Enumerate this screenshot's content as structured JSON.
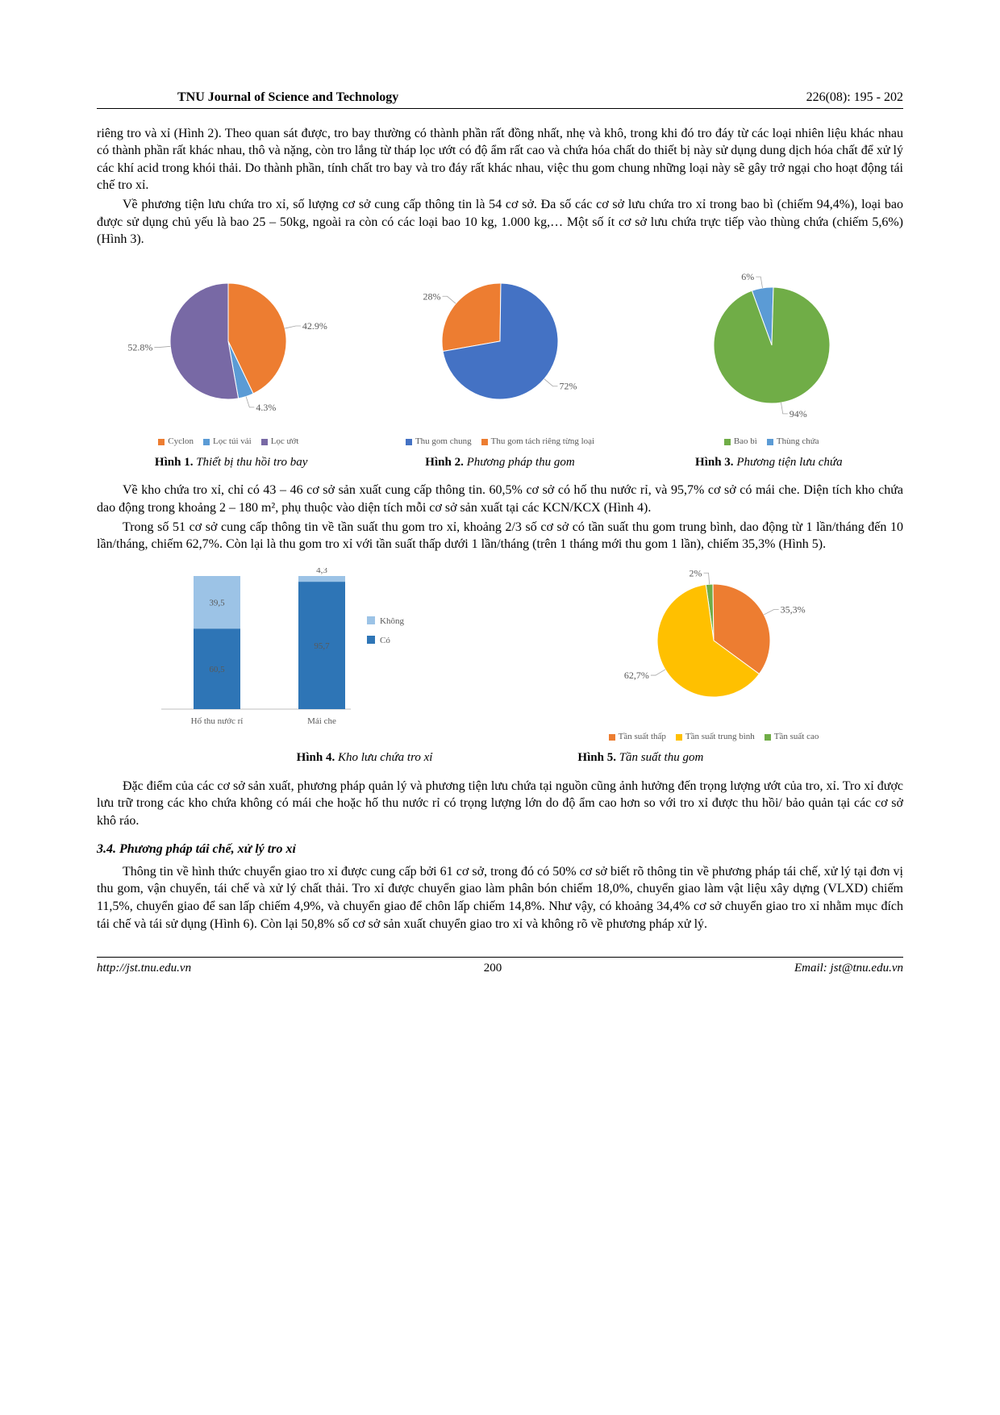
{
  "header": {
    "journal": "TNU Journal of Science and Technology",
    "pages": "226(08): 195 - 202"
  },
  "para1": "riêng tro và xỉ (Hình 2). Theo quan sát được, tro bay thường có thành phần rất đồng nhất, nhẹ và khô, trong khi đó tro đáy từ các loại nhiên liệu khác nhau có thành phần rất khác nhau, thô và nặng, còn tro lắng từ tháp lọc ướt có độ ẩm rất cao và chứa hóa chất do thiết bị này sử dụng dung dịch hóa chất để xử lý các khí acid trong khói thải. Do thành phần, tính chất tro bay và tro đáy rất khác nhau, việc thu gom chung những loại này sẽ gây trở ngại cho hoạt động tái chế tro xỉ.",
  "para2": "Về phương tiện lưu chứa tro xỉ, số lượng cơ sở cung cấp thông tin là 54 cơ sở. Đa số các cơ sở lưu chứa tro xỉ trong bao bì (chiếm 94,4%), loại bao được sử dụng chủ yếu là bao 25 – 50kg, ngoài ra còn có các loại bao 10 kg, 1.000 kg,… Một số ít cơ sở lưu chứa trực tiếp vào thùng chứa (chiếm 5,6%) (Hình 3).",
  "fig1": {
    "type": "pie",
    "slices": [
      {
        "label": "Cyclon",
        "value": 42.9,
        "color": "#ed7d31"
      },
      {
        "label": "Lọc túi vải",
        "value": 4.3,
        "color": "#5b9bd5"
      },
      {
        "label": "Lọc ướt",
        "value": 52.8,
        "color": "#7869a5"
      }
    ],
    "caption_bold": "Hình 1.",
    "caption_ital": " Thiết bị thu hồi tro bay"
  },
  "fig2": {
    "type": "pie",
    "slices": [
      {
        "label": "Thu gom chung",
        "value": 72,
        "color": "#4472c4"
      },
      {
        "label": "Thu gom tách riêng từng loại",
        "value": 28,
        "color": "#ed7d31"
      }
    ],
    "caption_bold": "Hình 2.",
    "caption_ital": " Phương pháp thu gom"
  },
  "fig3": {
    "type": "pie",
    "slices": [
      {
        "label": "Bao bì",
        "value": 94,
        "color": "#70ad47"
      },
      {
        "label": "Thùng chứa",
        "value": 6,
        "color": "#5b9bd5"
      }
    ],
    "caption_bold": "Hình 3.",
    "caption_ital": " Phương tiện lưu chứa"
  },
  "para3": "Về kho chứa tro xỉ, chỉ có 43 – 46 cơ sở sản xuất cung cấp thông tin. 60,5% cơ sở có hố thu nước rỉ, và 95,7% cơ sở có mái che. Diện tích kho chứa dao động trong khoảng 2 – 180 m², phụ thuộc vào diện tích mỗi cơ sở sản xuất tại các KCN/KCX (Hình 4).",
  "para4": "Trong số 51 cơ sở cung cấp thông tin về tần suất thu gom tro xỉ, khoảng 2/3 số cơ sở có tần suất thu gom trung bình, dao động từ 1 lần/tháng đến 10 lần/tháng, chiếm 62,7%. Còn lại là thu gom tro xỉ với tần suất thấp dưới 1 lần/tháng (trên 1 tháng mới thu gom 1 lần), chiếm 35,3% (Hình 5).",
  "fig4": {
    "type": "stacked_bar",
    "categories": [
      "Hố thu nước rỉ",
      "Mái che"
    ],
    "series": [
      {
        "label": "Không",
        "color": "#9cc3e6",
        "values": [
          39.5,
          4.3
        ]
      },
      {
        "label": "Có",
        "color": "#2e75b6",
        "values": [
          60.5,
          95.7
        ]
      }
    ],
    "caption_bold": "Hình 4.",
    "caption_ital": " Kho lưu chứa tro xỉ"
  },
  "fig5": {
    "type": "pie",
    "slices": [
      {
        "label": "Tần suất thấp",
        "value": 35.3,
        "color": "#ed7d31"
      },
      {
        "label": "Tần suất trung bình",
        "value": 62.7,
        "color": "#ffc000"
      },
      {
        "label": "Tần suất cao",
        "value": 2,
        "color": "#70ad47"
      }
    ],
    "caption_bold": "Hình 5.",
    "caption_ital": " Tần suất thu gom"
  },
  "para5": "Đặc điểm của các cơ sở sản xuất, phương pháp quản lý và phương tiện lưu chứa tại nguồn cũng ảnh hưởng đến trọng lượng ướt của tro, xỉ. Tro xỉ được lưu trữ trong các kho chứa không có mái che hoặc hố thu nước rỉ có trọng lượng lớn do độ ẩm cao hơn so với tro xỉ được thu hồi/ bảo quản tại các cơ sở khô ráo.",
  "section34": "3.4. Phương pháp tái chế, xử lý tro xỉ",
  "para6": "Thông tin về hình thức chuyển giao tro xỉ được cung cấp bởi 61 cơ sở, trong đó có 50% cơ sở biết rõ thông tin về phương pháp tái chế, xử lý tại đơn vị thu gom, vận chuyển, tái chế và xử lý chất thải. Tro xỉ được chuyển giao làm phân bón chiếm 18,0%, chuyển giao làm vật liệu xây dựng (VLXD) chiếm 11,5%, chuyển giao để san lấp chiếm 4,9%, và chuyển giao để chôn lấp chiếm 14,8%. Như vậy, có khoảng 34,4% cơ sở chuyển giao tro xỉ nhằm mục đích tái chế và tái sử dụng (Hình 6). Còn lại 50,8% số cơ sở sản xuất chuyển giao tro xỉ và không rõ về phương pháp xử lý.",
  "footer": {
    "url": "http://jst.tnu.edu.vn",
    "page": "200",
    "email": "Email: jst@tnu.edu.vn"
  }
}
